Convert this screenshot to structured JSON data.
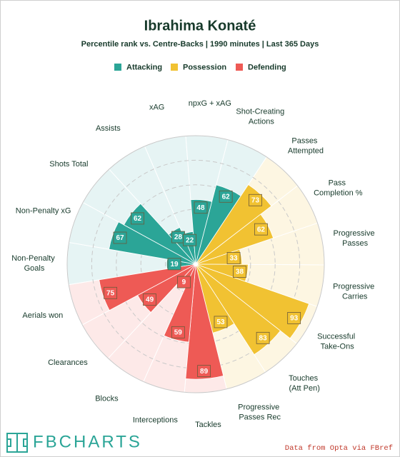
{
  "chart_data": {
    "type": "pizza",
    "title": "Ibrahima Konaté",
    "subtitle": "Percentile rank vs. Centre-Backs | 1990 minutes | Last 365 Days",
    "rlim": [
      0,
      100
    ],
    "rticks": [
      20,
      40,
      60,
      80,
      100
    ],
    "series": [
      {
        "name": "Attacking",
        "color": "#2ba597",
        "background": "#e6f4f4",
        "categories": [
          "Non-Penalty Goals",
          "Non-Penalty xG",
          "Shots Total",
          "Assists",
          "xAG",
          "npxG + xAG",
          "Shot-Creating Actions"
        ],
        "values": [
          19,
          67,
          62,
          28,
          22,
          48,
          62
        ]
      },
      {
        "name": "Possession",
        "color": "#f1c232",
        "background": "#fdf6e2",
        "categories": [
          "Passes Attempted",
          "Pass Completion %",
          "Progressive Passes",
          "Progressive Carries",
          "Successful Take-Ons",
          "Touches (Att Pen)",
          "Progressive Passes Rec"
        ],
        "values": [
          73,
          62,
          33,
          38,
          93,
          83,
          53
        ]
      },
      {
        "name": "Defending",
        "color": "#ee5a55",
        "background": "#fde9e8",
        "categories": [
          "Tackles",
          "Interceptions",
          "Blocks",
          "Clearances",
          "Aerials won"
        ],
        "values": [
          89,
          59,
          9,
          49,
          75
        ]
      }
    ],
    "logo": "FBCHARTS",
    "source": "Data from Opta via FBref"
  }
}
